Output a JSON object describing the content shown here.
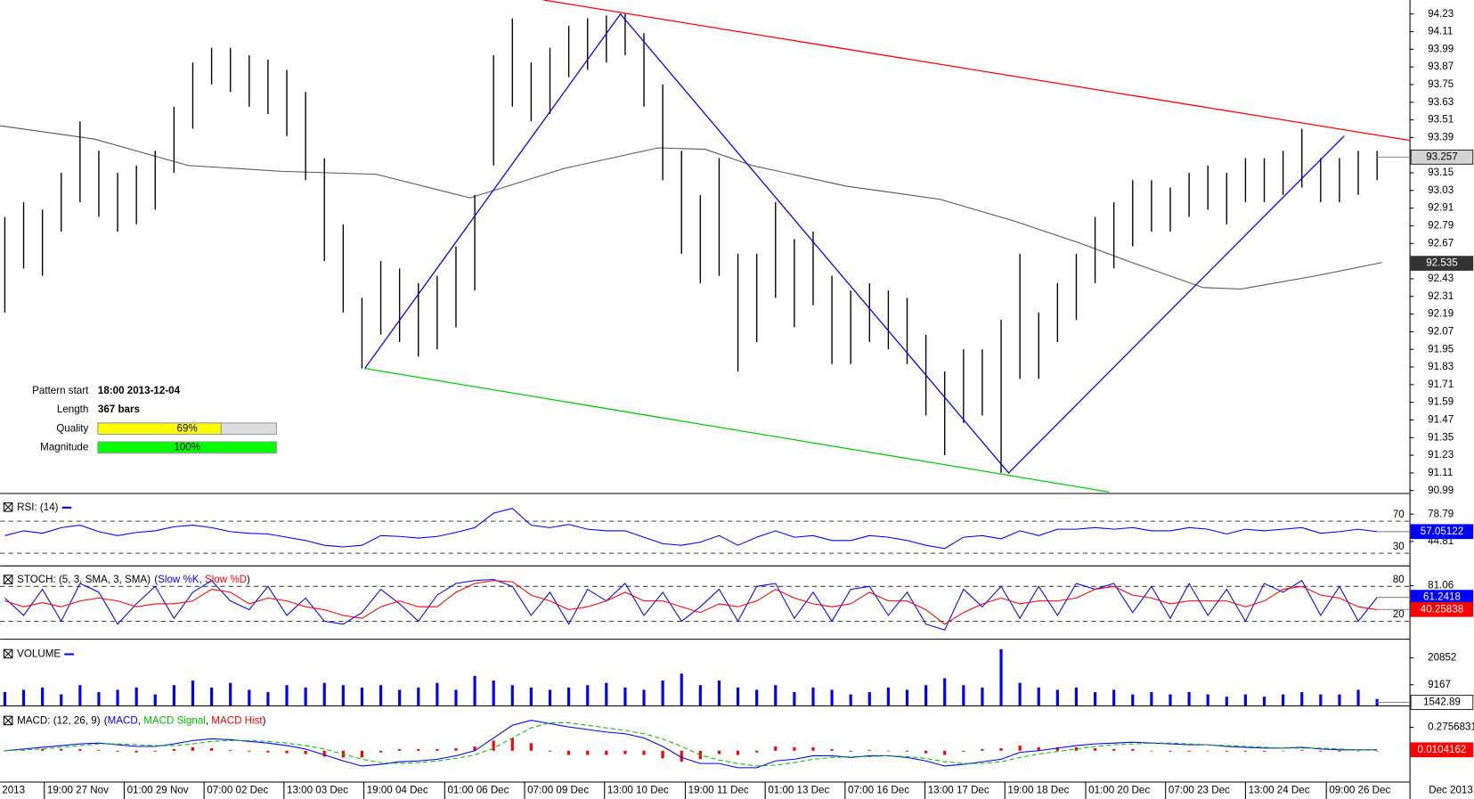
{
  "chart_data": [
    {
      "type": "ohlc",
      "xlim": [
        -0.25,
        74.75
      ],
      "xticks": [
        {
          "value": 2.1,
          "label": "19:00 27 Nov"
        },
        {
          "value": 6.35,
          "label": "01:00 29 Nov"
        },
        {
          "value": 10.6,
          "label": "07:00 02 Dec"
        },
        {
          "value": 14.85,
          "label": "13:00 03 Dec"
        },
        {
          "value": 19.1,
          "label": "19:00 04 Dec"
        },
        {
          "value": 23.4,
          "label": "01:00 06 Dec"
        },
        {
          "value": 27.65,
          "label": "07:00 09 Dec"
        },
        {
          "value": 31.9,
          "label": "13:00 10 Dec"
        },
        {
          "value": 36.2,
          "label": "19:00 11 Dec"
        },
        {
          "value": 40.45,
          "label": "01:00 13 Dec"
        },
        {
          "value": 44.7,
          "label": "07:00 16 Dec"
        },
        {
          "value": 48.95,
          "label": "13:00 17 Dec"
        },
        {
          "value": 53.2,
          "label": "19:00 18 Dec"
        },
        {
          "value": 57.5,
          "label": "01:00 20 Dec"
        },
        {
          "value": 61.75,
          "label": "07:00 23 Dec"
        },
        {
          "value": 66,
          "label": "13:00 24 Dec"
        },
        {
          "value": 70.3,
          "label": "09:00 26 Dec"
        }
      ],
      "x_axis_start": "2013",
      "x_axis_end": "Dec 2013",
      "ylim": [
        90.97,
        94.325
      ],
      "yticks": [
        94.23,
        94.11,
        93.99,
        93.87,
        93.75,
        93.63,
        93.51,
        93.39,
        93.15,
        93.03,
        92.91,
        92.79,
        92.67,
        92.43,
        92.31,
        92.19,
        92.07,
        91.95,
        91.83,
        91.71,
        91.59,
        91.47,
        91.35,
        91.23,
        91.11,
        90.99
      ],
      "color": "#000000",
      "highs": [
        92.85,
        92.95,
        92.9,
        93.15,
        93.5,
        93.3,
        93.15,
        93.2,
        93.3,
        93.6,
        93.9,
        94.0,
        94.0,
        93.95,
        93.92,
        93.85,
        93.7,
        93.25,
        92.8,
        92.3,
        92.55,
        92.5,
        92.4,
        92.45,
        92.65,
        93.0,
        93.95,
        94.2,
        93.9,
        94.0,
        94.15,
        94.2,
        94.22,
        94.23,
        94.1,
        93.75,
        93.3,
        93.0,
        93.25,
        92.6,
        92.6,
        92.95,
        92.7,
        92.75,
        92.45,
        92.35,
        92.4,
        92.35,
        92.3,
        92.05,
        91.8,
        91.95,
        91.95,
        92.15,
        92.6,
        92.2,
        92.4,
        92.6,
        92.85,
        92.95,
        93.1,
        93.1,
        93.05,
        93.15,
        93.2,
        93.15,
        93.25,
        93.25,
        93.3,
        93.45,
        93.25,
        93.25,
        93.3,
        93.3
      ],
      "lows": [
        92.2,
        92.5,
        92.45,
        92.75,
        92.95,
        92.85,
        92.75,
        92.8,
        92.9,
        93.15,
        93.45,
        93.75,
        93.7,
        93.6,
        93.55,
        93.4,
        93.1,
        92.55,
        92.2,
        91.82,
        92.05,
        92.0,
        91.9,
        91.95,
        92.1,
        92.35,
        93.2,
        93.6,
        93.5,
        93.55,
        93.8,
        93.85,
        93.9,
        93.95,
        93.6,
        93.1,
        92.6,
        92.4,
        92.45,
        91.8,
        92.0,
        92.3,
        92.1,
        92.25,
        91.85,
        91.85,
        92.0,
        91.95,
        91.85,
        91.5,
        91.23,
        91.45,
        91.5,
        91.11,
        91.75,
        91.75,
        92.0,
        92.15,
        92.4,
        92.5,
        92.65,
        92.75,
        92.75,
        92.85,
        92.9,
        92.8,
        92.95,
        92.95,
        93.0,
        93.05,
        92.95,
        92.95,
        93.0,
        93.1
      ],
      "moving_average": {
        "color": "#555555",
        "x": [
          -0.25,
          4.75,
          9.75,
          14.75,
          19.75,
          24.75,
          29.75,
          34.75,
          37.25,
          39.75,
          44.75,
          49.75,
          53.75,
          57.25,
          59.75,
          63.75,
          65.75,
          69.75,
          73.25
        ],
        "values": [
          93.47,
          93.38,
          93.2,
          93.16,
          93.14,
          92.98,
          93.18,
          93.32,
          93.31,
          93.2,
          93.06,
          92.97,
          92.82,
          92.67,
          92.55,
          92.37,
          92.36,
          92.45,
          92.54
        ]
      },
      "pattern_lines": [
        {
          "color": "#ff0000",
          "x": [
            28.65,
            74.75
          ],
          "values": [
            94.325,
            93.37
          ]
        },
        {
          "color": "#00cc00",
          "x": [
            19.15,
            58.75
          ],
          "values": [
            91.82,
            90.98
          ]
        },
        {
          "color": "#0000ff",
          "x": [
            19.15,
            32.75,
            53.4,
            71.25
          ],
          "values": [
            91.82,
            94.23,
            91.11,
            93.4
          ]
        }
      ],
      "price_labels": [
        93.257,
        92.535
      ],
      "price_label_colors": [
        "#d4d4d4",
        "#333333"
      ],
      "pattern_info": {
        "rows": [
          {
            "label": "Pattern start",
            "value": "18:00 2013-12-04"
          },
          {
            "label": "Length",
            "value": "367 bars"
          },
          {
            "label": "Quality",
            "value": 69,
            "value_label": "69%",
            "color": "#ffff00"
          },
          {
            "label": "Magnitude",
            "value": 100,
            "value_label": "100%",
            "color": "#00ff00"
          }
        ]
      }
    },
    {
      "type": "line",
      "title": "RSI: (14)",
      "ylim": [
        14.3,
        102.2
      ],
      "yticks": [
        78.79,
        44.81
      ],
      "levels": [
        70,
        30
      ],
      "series": [
        {
          "color": "#0000ff",
          "last_value": 57.05122,
          "values": [
            52,
            58,
            55,
            62,
            65,
            57,
            52,
            56,
            58,
            63,
            65,
            62,
            57,
            55,
            54,
            50,
            46,
            40,
            38,
            40,
            52,
            51,
            49,
            51,
            56,
            62,
            80,
            86,
            65,
            62,
            66,
            60,
            58,
            58,
            50,
            42,
            40,
            44,
            52,
            40,
            50,
            58,
            50,
            52,
            46,
            46,
            52,
            50,
            46,
            40,
            36,
            50,
            52,
            48,
            58,
            52,
            60,
            60,
            62,
            60,
            62,
            58,
            58,
            62,
            60,
            54,
            60,
            58,
            60,
            62,
            55,
            57,
            60,
            57
          ]
        }
      ]
    },
    {
      "type": "line",
      "title": "STOCH: (5, 3, SMA, 3, SMA)",
      "legend_open": "(",
      "legend_sep": ", ",
      "legend_close": ")",
      "ylim": [
        -10.8,
        112
      ],
      "yticks": [
        81.06
      ],
      "levels": [
        80,
        20
      ],
      "series": [
        {
          "name": "Slow %K",
          "color": "#0000ff",
          "last_value": 61.2418,
          "values": [
            60,
            30,
            75,
            20,
            85,
            70,
            15,
            50,
            80,
            25,
            70,
            90,
            55,
            40,
            80,
            30,
            60,
            20,
            15,
            35,
            75,
            50,
            20,
            65,
            85,
            90,
            92,
            80,
            30,
            70,
            15,
            75,
            55,
            85,
            30,
            70,
            20,
            45,
            75,
            20,
            80,
            85,
            25,
            70,
            20,
            75,
            80,
            30,
            70,
            15,
            5,
            75,
            45,
            80,
            25,
            80,
            30,
            85,
            75,
            85,
            35,
            80,
            25,
            85,
            30,
            75,
            20,
            85,
            70,
            90,
            30,
            80,
            20,
            61
          ]
        },
        {
          "name": "Slow %D",
          "color": "#ff0000",
          "last_value": 40.25838,
          "values": [
            55,
            45,
            52,
            45,
            55,
            60,
            55,
            45,
            50,
            50,
            55,
            75,
            70,
            50,
            60,
            55,
            45,
            40,
            30,
            25,
            45,
            55,
            45,
            45,
            70,
            85,
            90,
            88,
            65,
            55,
            40,
            45,
            55,
            70,
            55,
            55,
            45,
            35,
            50,
            45,
            55,
            75,
            60,
            50,
            45,
            50,
            70,
            55,
            55,
            40,
            15,
            35,
            50,
            60,
            50,
            55,
            55,
            60,
            75,
            80,
            65,
            60,
            50,
            55,
            55,
            55,
            45,
            55,
            75,
            80,
            65,
            60,
            45,
            40
          ]
        }
      ]
    },
    {
      "type": "bar",
      "title": "VOLUME",
      "color": "#0000ff",
      "ylim": [
        0,
        27700
      ],
      "yticks": [
        20852,
        9167
      ],
      "last_value": 1542.89,
      "last_value_color": "#ffffff",
      "values": [
        6000,
        7000,
        8000,
        5000,
        9000,
        6000,
        7000,
        8000,
        5000,
        9000,
        11000,
        8000,
        10000,
        7000,
        6000,
        9000,
        8000,
        10000,
        9000,
        8000,
        9000,
        7000,
        8000,
        10000,
        7000,
        13000,
        11000,
        9000,
        8000,
        7000,
        8000,
        9000,
        10000,
        8000,
        7000,
        11000,
        14000,
        9000,
        11000,
        8000,
        7000,
        9000,
        6000,
        8000,
        7000,
        5000,
        6000,
        8000,
        7000,
        9000,
        12000,
        9000,
        8000,
        24600,
        10000,
        8000,
        7000,
        8000,
        6000,
        7000,
        5000,
        6000,
        5000,
        6000,
        5000,
        4000,
        5000,
        4000,
        5000,
        6000,
        5000,
        5000,
        7000,
        3000
      ]
    },
    {
      "type": "line",
      "title": "MACD: (12, 26, 9)",
      "legend_open": "(",
      "legend_sep": ", ",
      "legend_close": ")",
      "ylim": [
        -0.37,
        0.495
      ],
      "yticks": [
        0.2756831
      ],
      "last_value": 0.0104162,
      "last_value_color": "#ff0000",
      "series": [
        {
          "name": "MACD",
          "color": "#0000ff",
          "values": [
            0.0,
            0.02,
            0.04,
            0.06,
            0.08,
            0.09,
            0.07,
            0.05,
            0.05,
            0.08,
            0.12,
            0.14,
            0.13,
            0.11,
            0.09,
            0.06,
            0.02,
            -0.05,
            -0.12,
            -0.18,
            -0.16,
            -0.13,
            -0.12,
            -0.1,
            -0.06,
            0.0,
            0.15,
            0.3,
            0.36,
            0.32,
            0.28,
            0.25,
            0.22,
            0.2,
            0.15,
            0.05,
            -0.08,
            -0.15,
            -0.15,
            -0.2,
            -0.2,
            -0.12,
            -0.1,
            -0.06,
            -0.06,
            -0.08,
            -0.06,
            -0.06,
            -0.08,
            -0.12,
            -0.18,
            -0.16,
            -0.13,
            -0.1,
            -0.02,
            0.0,
            0.03,
            0.06,
            0.08,
            0.09,
            0.1,
            0.09,
            0.08,
            0.07,
            0.07,
            0.05,
            0.04,
            0.03,
            0.03,
            0.04,
            0.02,
            0.01,
            0.01,
            0.01
          ]
        },
        {
          "name": "MACD Signal",
          "color": "#00c000",
          "dashed": true,
          "values": [
            0.0,
            0.01,
            0.02,
            0.04,
            0.06,
            0.08,
            0.08,
            0.07,
            0.06,
            0.06,
            0.08,
            0.11,
            0.12,
            0.12,
            0.11,
            0.09,
            0.06,
            0.02,
            -0.04,
            -0.1,
            -0.14,
            -0.15,
            -0.14,
            -0.12,
            -0.09,
            -0.05,
            0.03,
            0.15,
            0.27,
            0.33,
            0.33,
            0.3,
            0.27,
            0.24,
            0.2,
            0.14,
            0.05,
            -0.05,
            -0.11,
            -0.15,
            -0.18,
            -0.17,
            -0.14,
            -0.1,
            -0.08,
            -0.07,
            -0.07,
            -0.06,
            -0.07,
            -0.09,
            -0.13,
            -0.15,
            -0.15,
            -0.13,
            -0.08,
            -0.04,
            -0.01,
            0.02,
            0.05,
            0.07,
            0.08,
            0.09,
            0.09,
            0.08,
            0.07,
            0.06,
            0.05,
            0.04,
            0.03,
            0.03,
            0.03,
            0.02,
            0.01,
            0.01
          ]
        },
        {
          "name": "MACD Hist",
          "color": "#ff0000",
          "style": "histogram",
          "values": [
            0.0,
            0.01,
            0.02,
            0.02,
            0.02,
            0.01,
            -0.01,
            -0.02,
            -0.01,
            0.02,
            0.04,
            0.03,
            0.01,
            -0.01,
            -0.02,
            -0.03,
            -0.04,
            -0.07,
            -0.08,
            -0.08,
            -0.02,
            0.02,
            0.02,
            0.02,
            0.03,
            0.05,
            0.12,
            0.15,
            0.09,
            -0.01,
            -0.05,
            -0.05,
            -0.05,
            -0.04,
            -0.05,
            -0.09,
            -0.13,
            -0.1,
            -0.04,
            -0.05,
            -0.02,
            0.05,
            0.04,
            0.04,
            0.02,
            -0.01,
            0.01,
            0.0,
            -0.01,
            -0.03,
            -0.05,
            -0.01,
            0.02,
            0.03,
            0.06,
            0.04,
            0.04,
            0.04,
            0.03,
            0.02,
            0.02,
            0.0,
            -0.01,
            -0.01,
            0.0,
            -0.01,
            -0.01,
            -0.01,
            0.0,
            0.01,
            -0.01,
            -0.01,
            0.0,
            0.0
          ]
        }
      ]
    }
  ]
}
